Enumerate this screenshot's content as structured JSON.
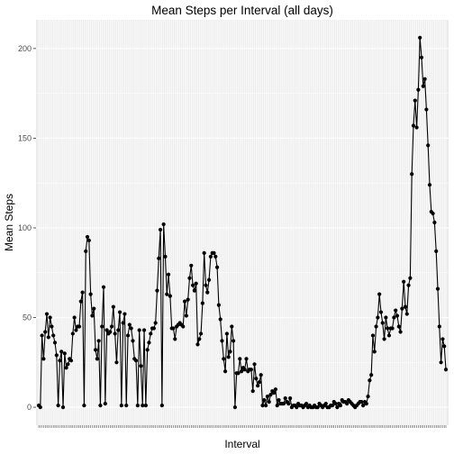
{
  "chart_data": {
    "type": "line",
    "title": "Mean Steps per Interval (all days)",
    "xlabel": "Interval",
    "ylabel": "Mean Steps",
    "ylim": [
      -10,
      216
    ],
    "y_ticks": [
      0,
      50,
      100,
      150,
      200
    ],
    "grid": true,
    "legend": "none",
    "marker": "point",
    "series": [
      {
        "values": [
          1,
          0,
          40,
          27,
          42,
          52,
          39,
          50,
          45,
          40,
          36,
          29,
          1,
          26,
          31,
          0,
          30,
          22,
          24,
          27,
          26,
          41,
          50,
          43,
          45,
          45,
          59,
          64,
          1,
          87,
          95,
          93,
          63,
          51,
          55,
          32,
          27,
          37,
          1,
          45,
          67,
          2,
          43,
          41,
          42,
          45,
          56,
          41,
          25,
          43,
          53,
          1,
          47,
          52,
          1,
          40,
          46,
          44,
          37,
          27,
          26,
          1,
          43,
          23,
          1,
          43,
          1,
          32,
          36,
          41,
          44,
          44,
          47,
          65,
          83,
          99,
          1,
          102,
          84,
          63,
          74,
          62,
          44,
          44,
          38,
          45,
          46,
          47,
          46,
          45,
          59,
          51,
          60,
          72,
          79,
          68,
          65,
          69,
          35,
          38,
          41,
          58,
          86,
          68,
          64,
          71,
          84,
          86,
          86,
          84,
          78,
          57,
          49,
          37,
          27,
          20,
          41,
          28,
          31,
          45,
          37,
          0,
          19,
          19,
          27,
          20,
          22,
          21,
          27,
          20,
          21,
          21,
          9,
          24,
          16,
          12,
          14,
          18,
          1,
          4,
          1,
          6,
          3,
          7,
          9,
          8,
          10,
          1,
          4,
          2,
          2,
          2,
          5,
          3,
          2,
          5,
          0,
          1,
          1,
          0,
          2,
          1,
          1,
          0,
          1,
          2,
          0,
          1,
          0,
          0,
          1,
          0,
          0,
          2,
          1,
          0,
          1,
          2,
          0,
          0,
          1,
          1,
          3,
          2,
          0,
          2,
          1,
          4,
          3,
          3,
          2,
          4,
          3,
          2,
          1,
          0,
          1,
          2,
          3,
          3,
          1,
          3,
          2,
          6,
          15,
          18,
          40,
          31,
          45,
          50,
          63,
          53,
          47,
          38,
          50,
          44,
          40,
          44,
          44,
          50,
          54,
          51,
          45,
          42,
          55,
          70,
          56,
          52,
          68,
          72,
          130,
          157,
          171,
          156,
          177,
          206,
          195,
          179,
          183,
          166,
          146,
          124,
          109,
          108,
          103,
          87,
          66,
          45,
          25,
          38,
          34,
          21
        ]
      }
    ]
  }
}
